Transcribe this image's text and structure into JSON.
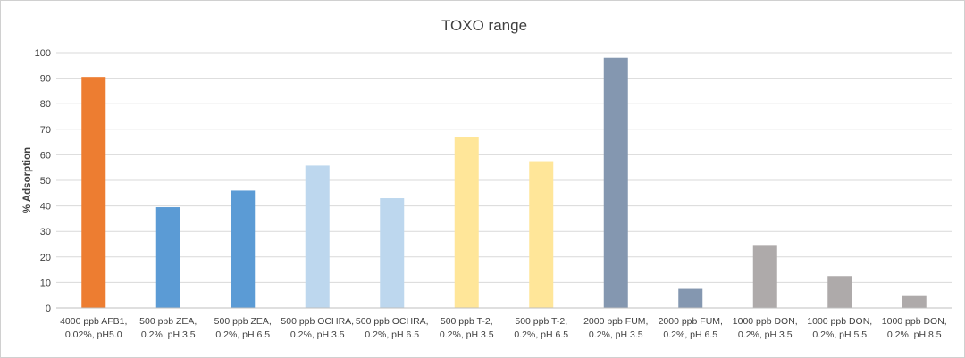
{
  "chart_data": {
    "type": "bar",
    "title": "TOXO range",
    "xlabel": "",
    "ylabel": "% Adsorption",
    "ylim": [
      0,
      100
    ],
    "yticks": [
      0,
      10,
      20,
      30,
      40,
      50,
      60,
      70,
      80,
      90,
      100
    ],
    "grid": true,
    "legend": "none",
    "categories": [
      [
        "4000 ppb AFB1,",
        "0.02%, pH5.0"
      ],
      [
        "500 ppb ZEA,",
        "0.2%, pH 3.5"
      ],
      [
        "500 ppb ZEA,",
        "0.2%, pH 6.5"
      ],
      [
        "500 ppb OCHRA,",
        "0.2%, pH 3.5"
      ],
      [
        "500 ppb OCHRA,",
        "0.2%, pH 6.5"
      ],
      [
        "500 ppb T-2,",
        "0.2%, pH 3.5"
      ],
      [
        "500 ppb T-2,",
        "0.2%, pH 6.5"
      ],
      [
        "2000 ppb FUM,",
        "0.2%, pH 3.5"
      ],
      [
        "2000 ppb FUM,",
        "0.2%, pH 6.5"
      ],
      [
        "1000 ppb DON,",
        "0.2%, pH 3.5"
      ],
      [
        "1000 ppb DON,",
        "0.2%, pH 5.5"
      ],
      [
        "1000 ppb DON,",
        "0.2%, pH 8.5"
      ]
    ],
    "values": [
      90.5,
      39.5,
      46,
      55.8,
      43,
      67,
      57.5,
      98,
      7.5,
      24.7,
      12.5,
      5
    ],
    "colors": [
      "#ed7d31",
      "#5b9bd5",
      "#5b9bd5",
      "#bdd7ee",
      "#bdd7ee",
      "#ffe699",
      "#ffe699",
      "#8497b0",
      "#8497b0",
      "#aeaaaa",
      "#aeaaaa",
      "#aeaaaa"
    ],
    "grid_color": "#d9d9d9",
    "axis_color": "#bfbfbf"
  }
}
